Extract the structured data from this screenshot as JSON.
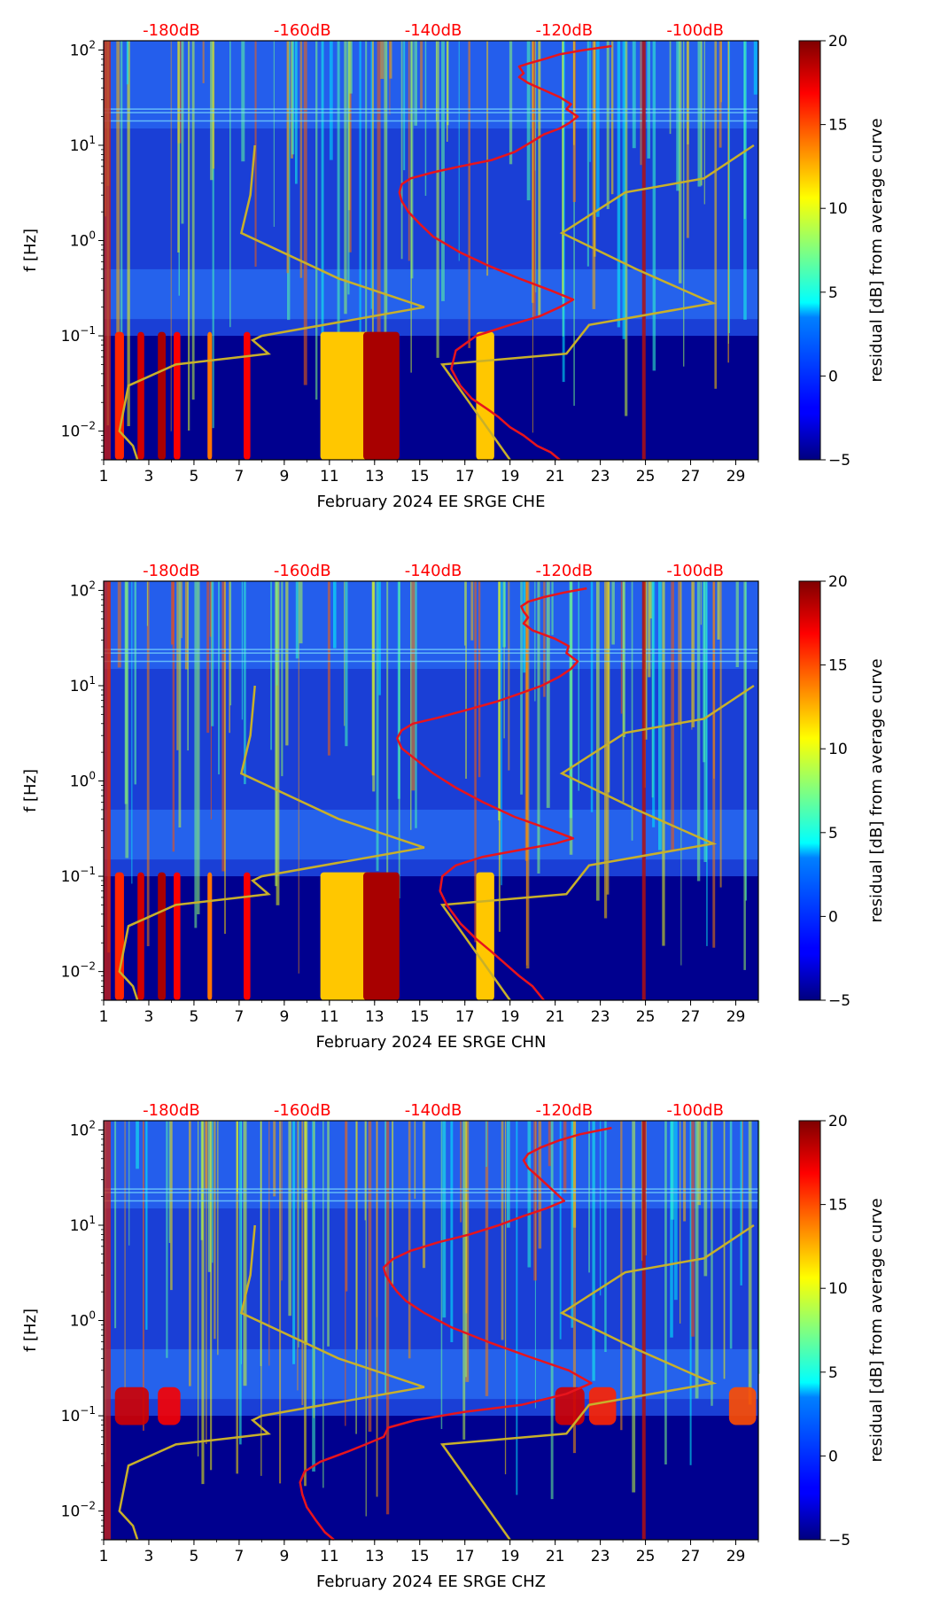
{
  "colors": {
    "db_scale_text": "#ff0000",
    "red_curve": "#e8141c",
    "noise_model_curve": "#c8b02a",
    "frame": "#000000"
  },
  "colormap": {
    "name": "jet",
    "label": "residual [dB] from average curve",
    "range": [
      -5,
      20
    ],
    "ticks": [
      "20",
      "15",
      "10",
      "5",
      "0",
      "−5"
    ],
    "tick_values": [
      20,
      15,
      10,
      5,
      0,
      -5
    ]
  },
  "chart_data": [
    {
      "type": "heatmap",
      "component": "CHE",
      "xlabel": "February 2024 EE SRGE  CHE",
      "ylabel": "f [Hz]",
      "x_ticks": [
        "1",
        "3",
        "5",
        "7",
        "9",
        "11",
        "13",
        "15",
        "17",
        "19",
        "21",
        "23",
        "25",
        "27",
        "29"
      ],
      "x_tick_values": [
        1,
        3,
        5,
        7,
        9,
        11,
        13,
        15,
        17,
        19,
        21,
        23,
        25,
        27,
        29
      ],
      "xlim": [
        1,
        30
      ],
      "ylim_hz": [
        0.005,
        125
      ],
      "y_ticks": [
        {
          "base": "10",
          "exp": "2"
        },
        {
          "base": "10",
          "exp": "1"
        },
        {
          "base": "10",
          "exp": "0"
        },
        {
          "base": "10",
          "exp": "−1"
        },
        {
          "base": "10",
          "exp": "−2"
        }
      ],
      "y_tick_values": [
        100,
        10,
        1,
        0.1,
        0.01
      ],
      "db_scale": {
        "labels": [
          "-180dB",
          "-160dB",
          "-140dB",
          "-120dB",
          "-100dB"
        ],
        "day_positions": [
          4,
          9.8,
          15.6,
          21.4,
          27.2
        ]
      },
      "red_curve": {
        "x_day": [
          21.2,
          20.8,
          20.2,
          19.6,
          19.0,
          18.5,
          18.0,
          17.3,
          16.8,
          16.4,
          16.6,
          17.5,
          19.0,
          20.3,
          21.2,
          21.8,
          20.8,
          19.4,
          18.0,
          16.8,
          15.6,
          15.0,
          14.5,
          14.2,
          14.1,
          14.2,
          14.6,
          15.6,
          16.8,
          18.2,
          19.2,
          20.0,
          20.5,
          21.2,
          21.6,
          22.0,
          21.5,
          21.7,
          21.2,
          20.5,
          19.8,
          19.4,
          19.6,
          19.5,
          19.4,
          19.8,
          20.5,
          21.2,
          22.3,
          23.5
        ],
        "f_hz": [
          0.005,
          0.006,
          0.007,
          0.009,
          0.011,
          0.014,
          0.017,
          0.022,
          0.03,
          0.045,
          0.07,
          0.1,
          0.13,
          0.16,
          0.2,
          0.24,
          0.3,
          0.4,
          0.55,
          0.75,
          1.1,
          1.5,
          2.0,
          2.6,
          3.2,
          3.9,
          4.5,
          5.2,
          6.0,
          7.0,
          8.5,
          11,
          13,
          15,
          17,
          20,
          24,
          27,
          32,
          38,
          45,
          52,
          57,
          62,
          67,
          72,
          80,
          90,
          100,
          110
        ]
      },
      "noise_model_curves": [
        {
          "name": "low",
          "x_day": [
            2.5,
            2.3,
            1.7,
            2.1,
            4.2,
            7.1,
            8.3,
            7.6,
            8.0,
            15.2,
            11.4,
            7.1,
            7.5,
            7.7
          ],
          "f_hz": [
            0.005,
            0.007,
            0.01,
            0.03,
            0.05,
            0.06,
            0.065,
            0.09,
            0.1,
            0.2,
            0.4,
            1.2,
            3,
            10
          ]
        },
        {
          "name": "high",
          "x_day": [
            19.0,
            16.0,
            21.5,
            22.5,
            28.0,
            24.6,
            21.3,
            24.1,
            27.6,
            29.8
          ],
          "f_hz": [
            0.005,
            0.05,
            0.065,
            0.13,
            0.22,
            0.5,
            1.2,
            3.2,
            4.5,
            10
          ]
        }
      ]
    },
    {
      "type": "heatmap",
      "component": "CHN",
      "xlabel": "February 2024 EE SRGE  CHN",
      "ylabel": "f [Hz]",
      "x_ticks": [
        "1",
        "3",
        "5",
        "7",
        "9",
        "11",
        "13",
        "15",
        "17",
        "19",
        "21",
        "23",
        "25",
        "27",
        "29"
      ],
      "x_tick_values": [
        1,
        3,
        5,
        7,
        9,
        11,
        13,
        15,
        17,
        19,
        21,
        23,
        25,
        27,
        29
      ],
      "xlim": [
        1,
        30
      ],
      "ylim_hz": [
        0.005,
        125
      ],
      "y_ticks": [
        {
          "base": "10",
          "exp": "2"
        },
        {
          "base": "10",
          "exp": "1"
        },
        {
          "base": "10",
          "exp": "0"
        },
        {
          "base": "10",
          "exp": "−1"
        },
        {
          "base": "10",
          "exp": "−2"
        }
      ],
      "y_tick_values": [
        100,
        10,
        1,
        0.1,
        0.01
      ],
      "db_scale": {
        "labels": [
          "-180dB",
          "-160dB",
          "-140dB",
          "-120dB",
          "-100dB"
        ],
        "day_positions": [
          4,
          9.8,
          15.6,
          21.4,
          27.2
        ]
      },
      "red_curve": {
        "x_day": [
          20.5,
          20.0,
          19.4,
          18.8,
          18.2,
          17.5,
          16.8,
          16.2,
          15.9,
          16.0,
          16.6,
          17.8,
          19.5,
          21.0,
          21.8,
          20.6,
          19.2,
          17.8,
          16.6,
          15.6,
          14.8,
          14.2,
          14.0,
          14.2,
          14.7,
          15.8,
          17.0,
          18.4,
          19.4,
          20.4,
          21.2,
          21.7,
          22.0,
          21.5,
          21.6,
          21.0,
          20.0,
          19.6,
          19.8,
          19.6,
          19.5,
          19.8,
          20.5,
          21.4,
          22.4
        ],
        "f_hz": [
          0.005,
          0.007,
          0.009,
          0.012,
          0.016,
          0.022,
          0.032,
          0.05,
          0.07,
          0.1,
          0.13,
          0.16,
          0.19,
          0.22,
          0.25,
          0.32,
          0.42,
          0.6,
          0.85,
          1.2,
          1.7,
          2.2,
          2.8,
          3.4,
          4.0,
          4.6,
          5.5,
          6.8,
          8.2,
          10,
          12.5,
          15,
          18,
          22,
          26,
          31,
          38,
          45,
          52,
          60,
          68,
          76,
          85,
          95,
          105
        ]
      },
      "noise_model_curves": [
        {
          "name": "low",
          "x_day": [
            2.5,
            2.3,
            1.7,
            2.1,
            4.2,
            7.1,
            8.3,
            7.6,
            8.0,
            15.2,
            11.4,
            7.1,
            7.5,
            7.7
          ],
          "f_hz": [
            0.005,
            0.007,
            0.01,
            0.03,
            0.05,
            0.06,
            0.065,
            0.09,
            0.1,
            0.2,
            0.4,
            1.2,
            3,
            10
          ]
        },
        {
          "name": "high",
          "x_day": [
            19.0,
            16.0,
            21.5,
            22.5,
            28.0,
            24.6,
            21.3,
            24.1,
            27.6,
            29.8
          ],
          "f_hz": [
            0.005,
            0.05,
            0.065,
            0.13,
            0.22,
            0.5,
            1.2,
            3.2,
            4.5,
            10
          ]
        }
      ]
    },
    {
      "type": "heatmap",
      "component": "CHZ",
      "xlabel": "February 2024 EE SRGE  CHZ",
      "ylabel": "f [Hz]",
      "x_ticks": [
        "1",
        "3",
        "5",
        "7",
        "9",
        "11",
        "13",
        "15",
        "17",
        "19",
        "21",
        "23",
        "25",
        "27",
        "29"
      ],
      "x_tick_values": [
        1,
        3,
        5,
        7,
        9,
        11,
        13,
        15,
        17,
        19,
        21,
        23,
        25,
        27,
        29
      ],
      "xlim": [
        1,
        30
      ],
      "ylim_hz": [
        0.005,
        125
      ],
      "y_ticks": [
        {
          "base": "10",
          "exp": "2"
        },
        {
          "base": "10",
          "exp": "1"
        },
        {
          "base": "10",
          "exp": "0"
        },
        {
          "base": "10",
          "exp": "−1"
        },
        {
          "base": "10",
          "exp": "−2"
        }
      ],
      "y_tick_values": [
        100,
        10,
        1,
        0.1,
        0.01
      ],
      "db_scale": {
        "labels": [
          "-180dB",
          "-160dB",
          "-140dB",
          "-120dB",
          "-100dB"
        ],
        "day_positions": [
          4,
          9.8,
          15.6,
          21.4,
          27.2
        ]
      },
      "red_curve": {
        "x_day": [
          11.2,
          10.8,
          10.4,
          10.0,
          9.8,
          9.7,
          9.9,
          10.6,
          11.8,
          12.6,
          13.4,
          13.6,
          14.8,
          17.0,
          19.5,
          21.5,
          22.6,
          21.6,
          19.8,
          18.0,
          16.4,
          15.2,
          14.4,
          14.0,
          13.7,
          13.5,
          13.4,
          13.8,
          14.6,
          15.8,
          17.2,
          18.5,
          19.6,
          20.6,
          21.4,
          21.0,
          20.6,
          20.2,
          19.8,
          19.6,
          19.8,
          20.4,
          21.2,
          22.1,
          23.5
        ],
        "f_hz": [
          0.005,
          0.006,
          0.008,
          0.011,
          0.015,
          0.02,
          0.026,
          0.033,
          0.042,
          0.05,
          0.06,
          0.075,
          0.09,
          0.11,
          0.13,
          0.17,
          0.22,
          0.3,
          0.42,
          0.6,
          0.85,
          1.2,
          1.6,
          2.0,
          2.5,
          3.0,
          3.6,
          4.4,
          5.4,
          6.6,
          8.0,
          10,
          12.5,
          15,
          18,
          22,
          27,
          33,
          40,
          48,
          56,
          66,
          78,
          90,
          105
        ]
      },
      "noise_model_curves": [
        {
          "name": "low",
          "x_day": [
            2.5,
            2.3,
            1.7,
            2.1,
            4.2,
            7.1,
            8.3,
            7.6,
            8.0,
            15.2,
            11.4,
            7.1,
            7.5,
            7.7
          ],
          "f_hz": [
            0.005,
            0.007,
            0.01,
            0.03,
            0.05,
            0.06,
            0.065,
            0.09,
            0.1,
            0.2,
            0.4,
            1.2,
            3,
            10
          ]
        },
        {
          "name": "high",
          "x_day": [
            19.0,
            16.0,
            21.5,
            22.5,
            28.0,
            24.6,
            21.3,
            24.1,
            27.6,
            29.8
          ],
          "f_hz": [
            0.005,
            0.05,
            0.065,
            0.13,
            0.22,
            0.5,
            1.2,
            3.2,
            4.5,
            10
          ]
        }
      ]
    }
  ]
}
